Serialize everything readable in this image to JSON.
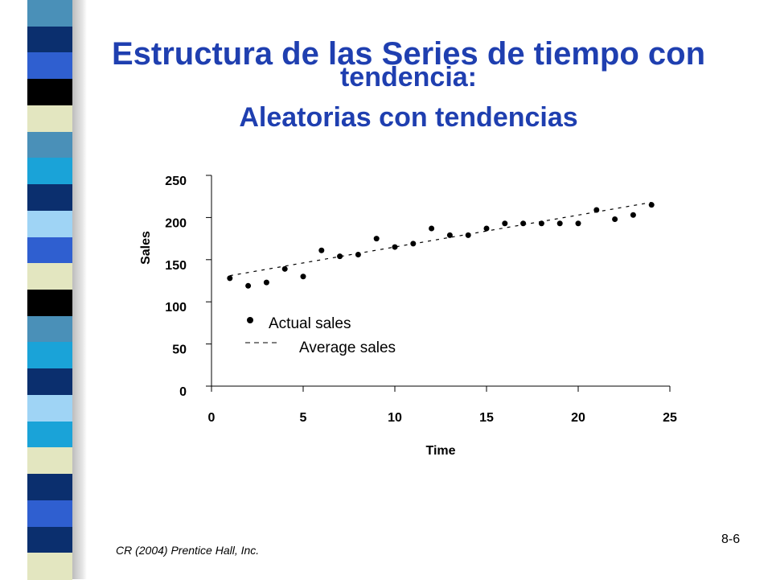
{
  "slide": {
    "title_line1": "Estructura de las Series de tiempo con",
    "title_line2": "tendencia:",
    "title_line3": "Aleatorias con tendencias",
    "credit": "CR (2004) Prentice Hall, Inc.",
    "slide_number": "8-6",
    "title_color": "#1f3fb0"
  },
  "decor": {
    "strip_colors": [
      "#4a90b8",
      "#0b2f6e",
      "#2f5fd0",
      "#000000",
      "#e3e6c0",
      "#4a90b8",
      "#1aa3d8",
      "#0b2f6e",
      "#9fd4f5",
      "#2f5fd0",
      "#e3e6c0",
      "#000000",
      "#4a90b8",
      "#1aa3d8",
      "#0b2f6e",
      "#9fd4f5",
      "#1aa3d8",
      "#e3e6c0",
      "#0b2f6e",
      "#2f5fd0",
      "#0b2f6e",
      "#e3e6c0"
    ]
  },
  "chart_data": {
    "type": "scatter",
    "xlabel": "Time",
    "ylabel": "Sales",
    "xlim": [
      0,
      25
    ],
    "ylim": [
      0,
      250
    ],
    "x_ticks": [
      "0",
      "5",
      "10",
      "15",
      "20",
      "25"
    ],
    "y_ticks": [
      "0",
      "50",
      "100",
      "150",
      "200",
      "250"
    ],
    "grid": false,
    "legend_position": "lower-left inside",
    "series": [
      {
        "name": "Actual sales",
        "style": "markers",
        "x": [
          1,
          2,
          3,
          4,
          5,
          6,
          7,
          8,
          9,
          10,
          11,
          12,
          13,
          14,
          15,
          16,
          17,
          18,
          19,
          20,
          21,
          22,
          23,
          24
        ],
        "y": [
          128,
          119,
          123,
          139,
          130,
          161,
          154,
          156,
          175,
          165,
          169,
          187,
          179,
          179,
          187,
          193,
          193,
          193,
          193,
          193,
          209,
          198,
          203,
          215
        ]
      },
      {
        "name": "Average sales",
        "style": "dashed-line",
        "x": [
          1,
          24
        ],
        "y": [
          131,
          218
        ]
      }
    ]
  }
}
